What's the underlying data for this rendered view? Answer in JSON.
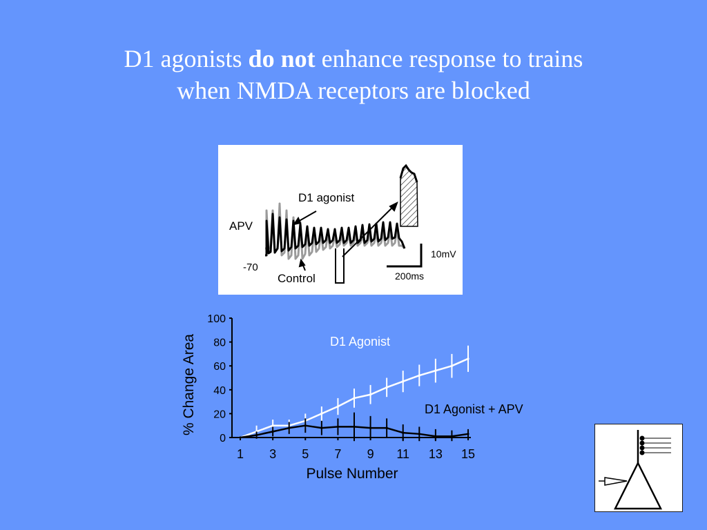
{
  "slide": {
    "title_part1": "D1 agonists ",
    "title_bold": "do not",
    "title_part2": " enhance response to trains",
    "title_line2": "when NMDA receptors are blocked"
  },
  "trace_panel": {
    "apv_label": "APV",
    "d1_agonist_label": "D1 agonist",
    "control_label": "Control",
    "baseline_label": "-70",
    "scale_voltage": "10mV",
    "scale_time": "200ms"
  },
  "chart_data": {
    "type": "line",
    "xlabel": "Pulse Number",
    "ylabel": "% Change Area",
    "x": [
      1,
      2,
      3,
      4,
      5,
      6,
      7,
      8,
      9,
      10,
      11,
      12,
      13,
      14,
      15
    ],
    "x_ticks": [
      "1",
      "3",
      "5",
      "7",
      "9",
      "11",
      "13",
      "15"
    ],
    "x_tick_values": [
      1,
      3,
      5,
      7,
      9,
      11,
      13,
      15
    ],
    "y_ticks": [
      "0",
      "20",
      "40",
      "60",
      "80",
      "100"
    ],
    "y_tick_values": [
      0,
      20,
      40,
      60,
      80,
      100
    ],
    "ylim": [
      0,
      100
    ],
    "xlim": [
      1,
      15
    ],
    "series": [
      {
        "name": "D1 Agonist",
        "color": "#ffffff",
        "values": [
          0,
          5,
          10,
          10,
          14,
          20,
          26,
          33,
          36,
          42,
          47,
          52,
          56,
          60,
          66
        ],
        "errors": [
          0,
          5,
          5,
          5,
          6,
          6,
          7,
          8,
          8,
          8,
          9,
          9,
          10,
          10,
          11
        ]
      },
      {
        "name": "D1 Agonist + APV",
        "color": "#000000",
        "values": [
          0,
          2,
          5,
          8,
          10,
          8,
          9,
          9,
          8,
          8,
          4,
          3,
          1,
          1,
          3
        ],
        "errors": [
          0,
          3,
          4,
          5,
          6,
          6,
          7,
          12,
          10,
          8,
          7,
          6,
          6,
          5,
          4
        ]
      }
    ]
  },
  "colors": {
    "background": "#6495fd",
    "title_text": "#ffffff",
    "d1_trace": "#000000",
    "control_trace": "#9b9b9b"
  }
}
